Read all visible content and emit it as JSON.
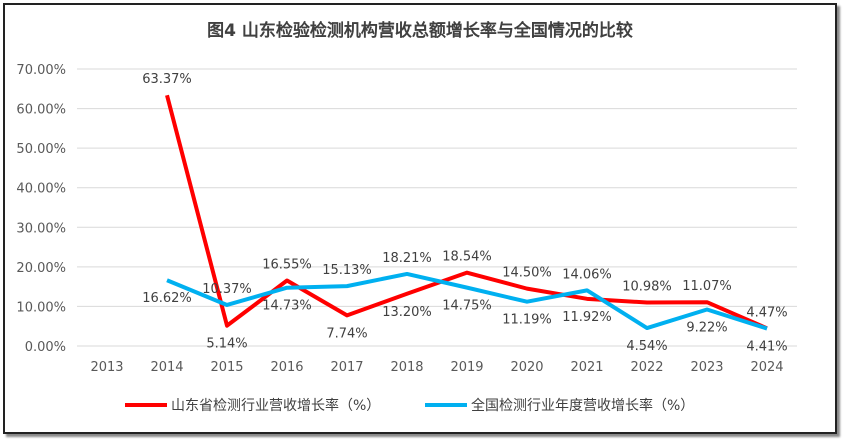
{
  "chart_data": {
    "type": "line",
    "title": "图4  山东检验检测机构营收总额增长率与全国情况的比较",
    "categories": [
      "2013",
      "2014",
      "2015",
      "2016",
      "2017",
      "2018",
      "2019",
      "2020",
      "2021",
      "2022",
      "2023",
      "2024"
    ],
    "ylim": [
      0,
      70
    ],
    "yticks": [
      "0.00%",
      "10.00%",
      "20.00%",
      "30.00%",
      "40.00%",
      "50.00%",
      "60.00%",
      "70.00%"
    ],
    "grid": true,
    "legend": "bottom",
    "series": [
      {
        "name": "山东省检测行业营收增长率（%）",
        "color": "#ff0000",
        "values": [
          null,
          63.37,
          5.14,
          16.55,
          7.74,
          13.2,
          18.54,
          14.5,
          11.92,
          10.98,
          11.07,
          4.47
        ],
        "labels": [
          "",
          "63.37%",
          "5.14%",
          "16.55%",
          "7.74%",
          "13.20%",
          "18.54%",
          "14.50%",
          "11.92%",
          "10.98%",
          "11.07%",
          "4.47%"
        ]
      },
      {
        "name": "全国检测行业年度营收增长率（%）",
        "color": "#00b0f0",
        "values": [
          null,
          16.62,
          10.37,
          14.73,
          15.13,
          18.21,
          14.75,
          11.19,
          14.06,
          4.54,
          9.22,
          4.41
        ],
        "labels": [
          "",
          "16.62%",
          "10.37%",
          "14.73%",
          "15.13%",
          "18.21%",
          "14.75%",
          "11.19%",
          "14.06%",
          "4.54%",
          "9.22%",
          "4.41%"
        ]
      }
    ]
  }
}
